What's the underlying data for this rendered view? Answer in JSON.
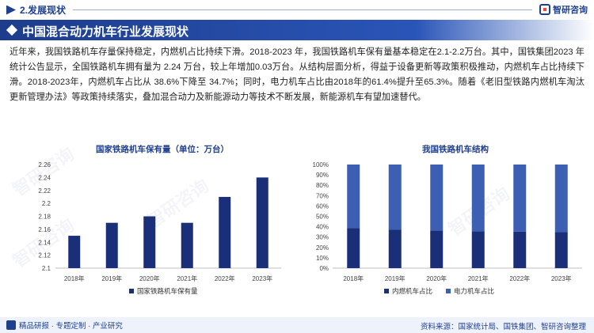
{
  "header": {
    "section": "2.发展现状",
    "brand": "智研咨询",
    "title": "中国混合动力机车行业发展现状"
  },
  "body_text": "近年来，我国铁路机车存量保持稳定，内燃机占比持续下滑。2018-2023 年，我国铁路机车保有量基本稳定在2.1-2.2万台。其中，国铁集团2023 年统计公告显示，全国铁路机车拥有量为 2.24 万台，较上年增加0.03万台。从结构层面分析，得益于设备更新等政策积极推动，内燃机车占比持续下滑。2018-2023年，内燃机车占比从 38.6%下降至 34.7%；同时，电力机车占比由2018年的61.4%提升至65.3%。随着《老旧型铁路内燃机车淘汰更新管理办法》等政策持续落实，叠加混合动力及新能源动力等技术不断发展，新能源机车有望加速替代。",
  "footer": {
    "left": "精品研报 · 专题定制 · 产业研究",
    "source": "资料来源：国家统计局、国铁集团、智研咨询整理"
  },
  "watermark": "智研咨询",
  "colors": {
    "navy": "#1f3f8f",
    "bar_dark": "#1b2f78",
    "bar_light": "#3d5fb3"
  },
  "chart_data": [
    {
      "type": "bar",
      "title": "国家铁路机车保有量（单位：万台）",
      "categories": [
        "2018年",
        "2019年",
        "2020年",
        "2021年",
        "2022年",
        "2023年"
      ],
      "series": [
        {
          "name": "国家铁路机车保有量",
          "values": [
            2.15,
            2.17,
            2.18,
            2.17,
            2.21,
            2.24
          ]
        }
      ],
      "ylim": [
        2.1,
        2.26
      ],
      "yticks": [
        "2.1",
        "2.12",
        "2.14",
        "2.16",
        "2.18",
        "2.2",
        "2.22",
        "2.24",
        "2.26"
      ],
      "legend": "bottom",
      "grid": false
    },
    {
      "type": "bar",
      "stacked": true,
      "title": "我国铁路机车结构",
      "categories": [
        "2018年",
        "2019年",
        "2020年",
        "2021年",
        "2022年",
        "2023年"
      ],
      "series": [
        {
          "name": "内燃机车占比",
          "values": [
            38.6,
            37.0,
            36.2,
            35.6,
            35.3,
            34.7
          ]
        },
        {
          "name": "电力机车占比",
          "values": [
            61.4,
            63.0,
            63.8,
            64.4,
            64.7,
            65.3
          ]
        }
      ],
      "ylim": [
        0,
        100
      ],
      "yticks": [
        "0%",
        "10%",
        "20%",
        "30%",
        "40%",
        "50%",
        "60%",
        "70%",
        "80%",
        "90%",
        "100%"
      ],
      "legend": "bottom",
      "grid": false
    }
  ]
}
